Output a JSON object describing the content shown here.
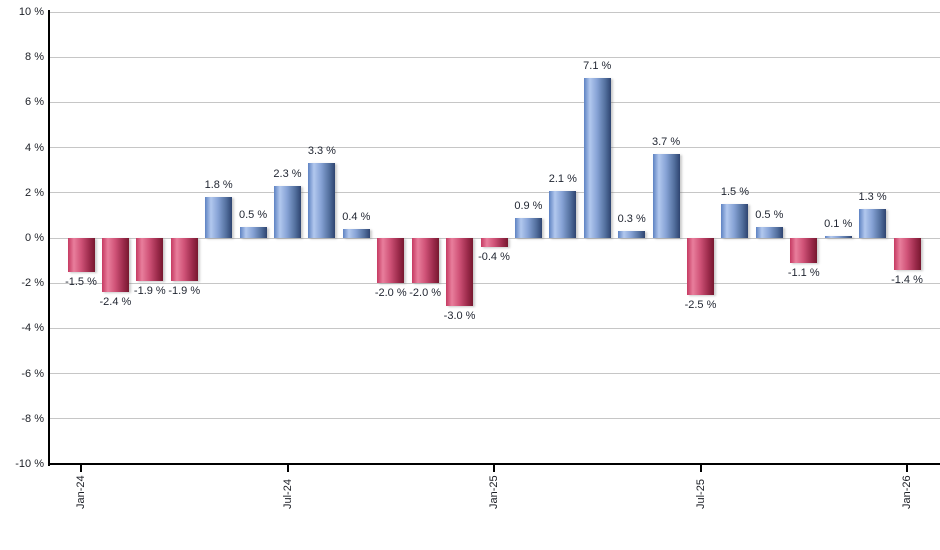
{
  "chart_data": {
    "type": "bar",
    "title": "",
    "xlabel": "",
    "ylabel": "",
    "values": [
      -1.5,
      -2.4,
      -1.9,
      -1.9,
      1.8,
      0.5,
      2.3,
      3.3,
      0.4,
      -2.0,
      -2.0,
      -3.0,
      -0.4,
      0.9,
      2.1,
      7.1,
      0.3,
      3.7,
      -2.5,
      1.5,
      0.5,
      -1.1,
      0.1,
      1.3,
      -1.4
    ],
    "value_label_suffix": " %",
    "ylim": [
      -10,
      10
    ],
    "ytick_step": 2,
    "ytick_suffix": " %",
    "ytick_labels": [
      "10 %",
      "8 %",
      "6 %",
      "4 %",
      "2 %",
      "0 %",
      "-2 %",
      "-4 %",
      "-6 %",
      "-8 %",
      "-10 %"
    ],
    "xticks": [
      {
        "bar_index": 0,
        "label": "Jan-24"
      },
      {
        "bar_index": 6,
        "label": "Jul-24"
      },
      {
        "bar_index": 12,
        "label": "Jan-25"
      },
      {
        "bar_index": 18,
        "label": "Jul-25"
      },
      {
        "bar_index": 24,
        "label": "Jan-26"
      }
    ],
    "grid": true,
    "legend": "none",
    "colors": {
      "positive_bar_gradient": [
        "#5e82c2",
        "#b2c8ee",
        "#87a3d6",
        "#54719f",
        "#2e4470"
      ],
      "negative_bar_gradient": [
        "#c53a62",
        "#e87e9c",
        "#d15479",
        "#9e2c4d",
        "#77182f"
      ],
      "gridline": "#c6c6c6",
      "axis": "#000000",
      "text": "#1c1f26"
    }
  }
}
